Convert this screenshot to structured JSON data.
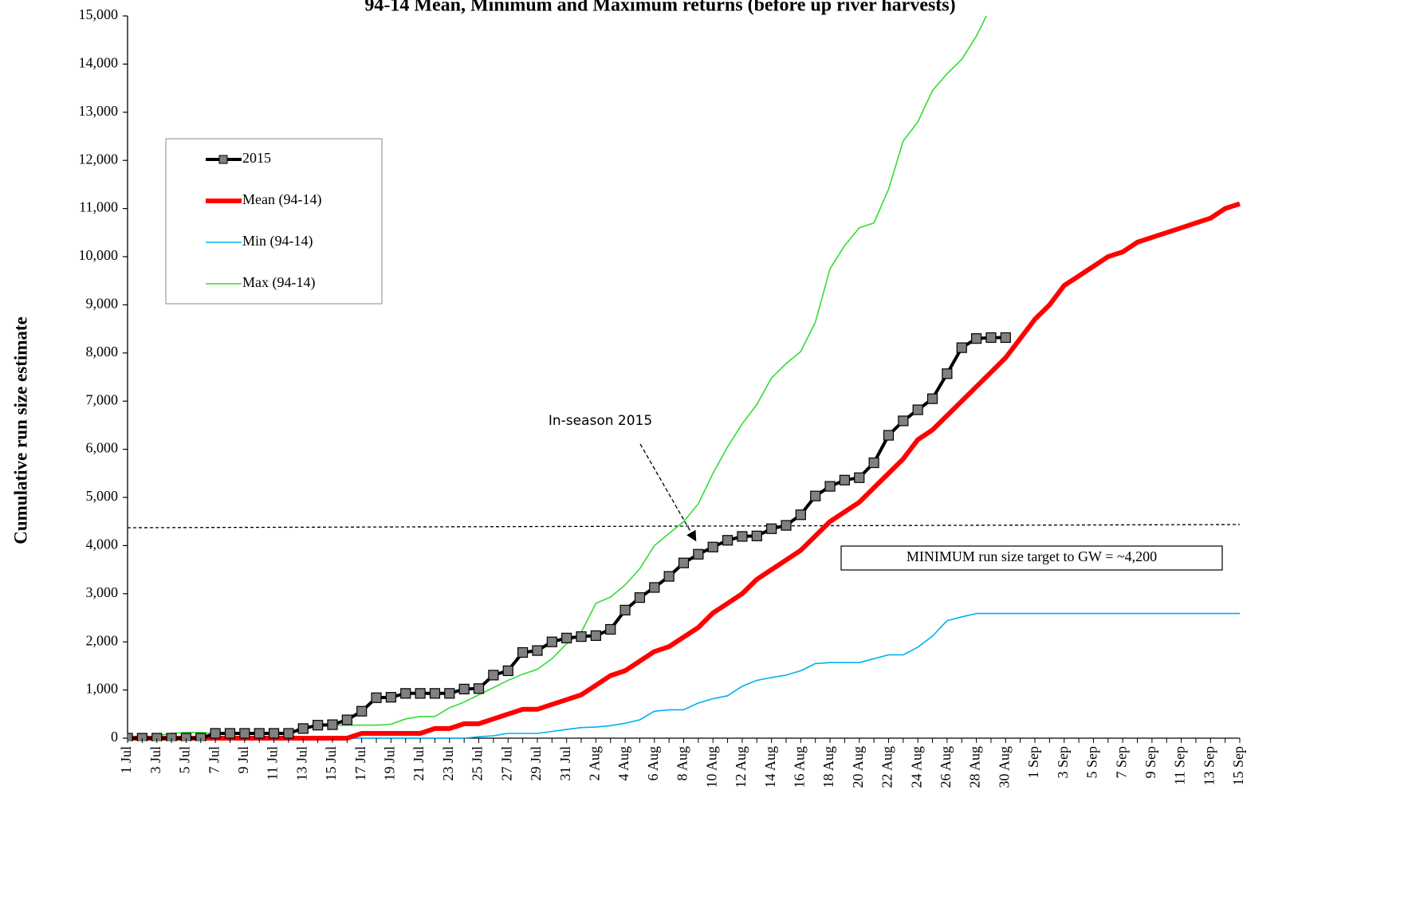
{
  "chart_data": {
    "type": "line",
    "title": "94-14 Mean, Minimum and Maximum returns (before up river harvests)",
    "y_label": "Cumulative run size estimate",
    "annotations": [
      "In-season 2015",
      "MINIMUM run size target to GW = ~4,200"
    ],
    "categories": [
      "1 Jul",
      null,
      "3 Jul",
      null,
      "5 Jul",
      null,
      "7 Jul",
      null,
      "9 Jul",
      null,
      "11 Jul",
      null,
      "13 Jul",
      null,
      "15 Jul",
      null,
      "17 Jul",
      null,
      "19 Jul",
      null,
      "21 Jul",
      null,
      "23 Jul",
      null,
      "25 Jul",
      null,
      "27 Jul",
      null,
      "29 Jul",
      null,
      "31 Jul",
      null,
      "2 Aug",
      null,
      "4 Aug",
      null,
      "6 Aug",
      null,
      "8 Aug",
      null,
      "10 Aug",
      null,
      "12 Aug",
      null,
      "14 Aug",
      null,
      "16 Aug",
      null,
      "18 Aug",
      null,
      "20 Aug",
      null,
      "22 Aug",
      null,
      "24 Aug",
      null,
      "26 Aug",
      null,
      "28 Aug",
      null,
      "30 Aug",
      null,
      "1 Sep",
      null,
      "3 Sep",
      null,
      "5 Sep",
      null,
      "7 Sep",
      null,
      "9 Sep",
      null,
      "11 Sep",
      null,
      "13 Sep",
      null,
      "15 Sep"
    ],
    "series": [
      {
        "name": "2015",
        "color": "#000000",
        "marker_color": "#808080",
        "values": [
          0,
          0,
          0,
          0,
          0,
          0,
          100,
          100,
          100,
          100,
          100,
          100,
          200,
          270,
          280,
          380,
          560,
          840,
          850,
          930,
          930,
          930,
          930,
          1020,
          1030,
          1310,
          1400,
          1780,
          1820,
          2000,
          2080,
          2110,
          2130,
          2260,
          2660,
          2920,
          3130,
          3360,
          3640,
          3820,
          3970,
          4110,
          4190,
          4200,
          4350,
          4420,
          4640,
          5030,
          5230,
          5360,
          5410,
          5720,
          6290,
          6590,
          6820,
          7050,
          7570,
          8110,
          8300,
          8320,
          8320,
          null,
          null,
          null,
          null,
          null,
          null,
          null,
          null,
          null,
          null,
          null,
          null,
          null,
          null,
          null,
          null
        ]
      },
      {
        "name": "Mean (94-14)",
        "color": "#ff0000",
        "values": [
          0,
          0,
          0,
          0,
          0,
          0,
          0,
          0,
          0,
          0,
          0,
          0,
          0,
          0,
          0,
          0,
          100,
          100,
          100,
          100,
          100,
          200,
          200,
          300,
          300,
          400,
          500,
          600,
          600,
          700,
          800,
          900,
          1100,
          1300,
          1400,
          1600,
          1800,
          1900,
          2100,
          2300,
          2600,
          2800,
          3000,
          3300,
          3500,
          3700,
          3900,
          4200,
          4500,
          4700,
          4900,
          5200,
          5500,
          5800,
          6200,
          6400,
          6700,
          7000,
          7300,
          7600,
          7900,
          8300,
          8700,
          9000,
          9400,
          9600,
          9800,
          10000,
          10100,
          10300,
          10400,
          10500,
          10600,
          10700,
          10800,
          11000,
          11100
        ]
      },
      {
        "name": "Min (94-14)",
        "color": "#00b0f0",
        "values": [
          0,
          0,
          0,
          0,
          0,
          0,
          0,
          0,
          0,
          0,
          0,
          0,
          0,
          0,
          0,
          0,
          0,
          0,
          0,
          0,
          0,
          0,
          0,
          0,
          30,
          50,
          100,
          100,
          100,
          140,
          180,
          220,
          230,
          260,
          310,
          380,
          560,
          590,
          590,
          730,
          820,
          880,
          1080,
          1200,
          1260,
          1310,
          1400,
          1550,
          1570,
          1570,
          1570,
          1650,
          1730,
          1730,
          1890,
          2120,
          2440,
          2520,
          2590,
          2590,
          2590,
          2590,
          2590,
          2590,
          2590,
          2590,
          2590,
          2590,
          2590,
          2590,
          2590,
          2590,
          2590,
          2590,
          2590,
          2590,
          2590
        ]
      },
      {
        "name": "Max (94-14)",
        "color": "#33dd33",
        "values": [
          0,
          0,
          50,
          100,
          120,
          120,
          100,
          100,
          100,
          100,
          100,
          100,
          250,
          250,
          270,
          270,
          270,
          270,
          290,
          400,
          450,
          450,
          630,
          750,
          900,
          1050,
          1200,
          1330,
          1430,
          1650,
          1960,
          2200,
          2800,
          2930,
          3180,
          3520,
          4000,
          4250,
          4500,
          4870,
          5500,
          6050,
          6530,
          6930,
          7480,
          7780,
          8030,
          8640,
          9750,
          10230,
          10600,
          10700,
          11400,
          12400,
          12800,
          13450,
          13800,
          14100,
          14580,
          15200,
          null,
          null,
          null,
          null,
          null,
          null,
          null,
          null,
          null,
          null,
          null,
          null,
          null,
          null,
          null,
          null,
          null
        ]
      }
    ],
    "ylim": [
      0,
      15000
    ],
    "yticks": [
      0,
      {
        "value": 1000,
        "label": "1,000"
      },
      {
        "value": 2000,
        "label": "2,000"
      },
      {
        "value": 3000,
        "label": "3,000"
      },
      {
        "value": 4000,
        "label": "4,000"
      },
      {
        "value": 5000,
        "label": "5,000"
      },
      {
        "value": 6000,
        "label": "6,000"
      },
      {
        "value": 7000,
        "label": "7,000"
      },
      {
        "value": 8000,
        "label": "8,000"
      },
      {
        "value": 9000,
        "label": "9,000"
      },
      {
        "value": 10000,
        "label": "10,000"
      },
      {
        "value": 11000,
        "label": "11,000"
      },
      {
        "value": 12000,
        "label": "12,000"
      },
      {
        "value": 13000,
        "label": "13,000"
      },
      {
        "value": 14000,
        "label": "14,000"
      },
      {
        "value": 15000,
        "label": "15,000"
      }
    ],
    "grid": false,
    "legend": "upper left"
  }
}
